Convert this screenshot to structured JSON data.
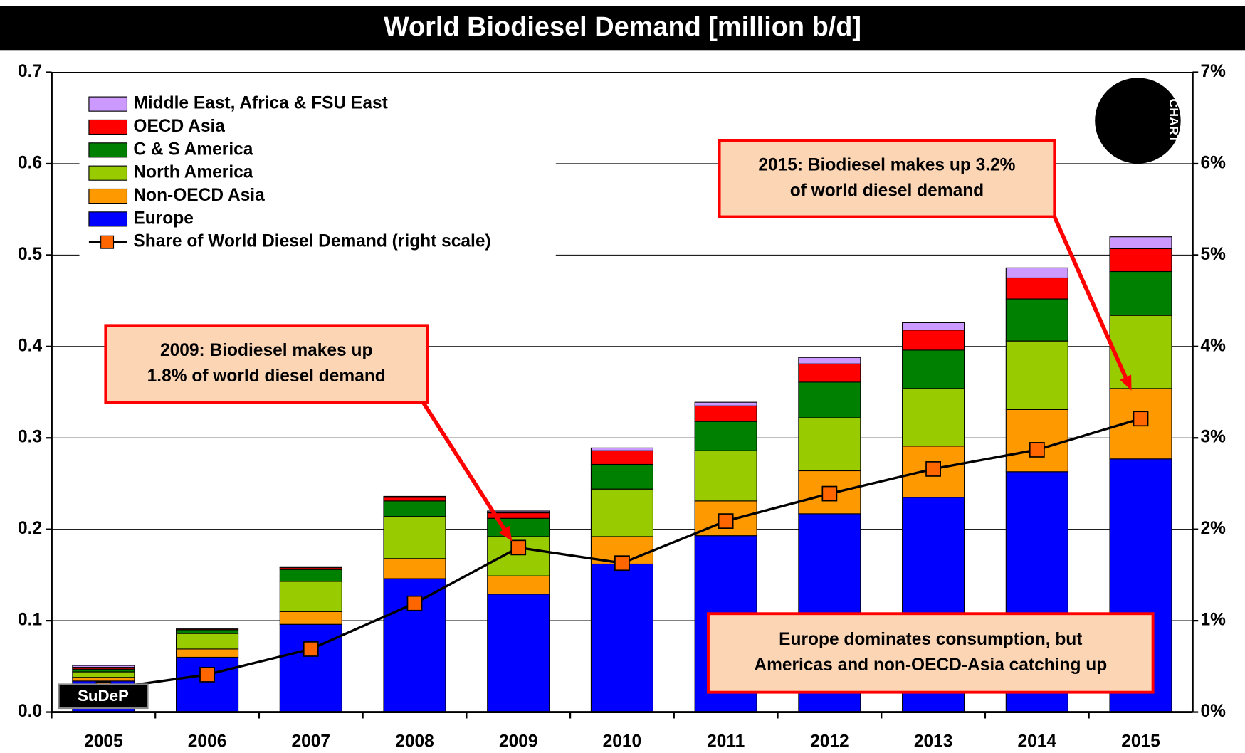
{
  "chart_data": {
    "type": "stacked_bar_line",
    "title": "World Biodiesel Demand [million b/d]",
    "categories": [
      "2005",
      "2006",
      "2007",
      "2008",
      "2009",
      "2010",
      "2011",
      "2012",
      "2013",
      "2014",
      "2015"
    ],
    "ylim": [
      0,
      0.7
    ],
    "yticks": [
      {
        "value": 0,
        "label": "0.0"
      },
      0.1,
      0.2,
      0.3,
      0.4,
      0.5,
      0.6,
      0.7
    ],
    "y2lim": [
      0,
      7
    ],
    "y2ticks": [
      {
        "value": 0,
        "label": "0%"
      },
      {
        "value": 1,
        "label": "1%"
      },
      {
        "value": 2,
        "label": "2%"
      },
      {
        "value": 3,
        "label": "3%"
      },
      {
        "value": 4,
        "label": "4%"
      },
      {
        "value": 5,
        "label": "5%"
      },
      {
        "value": 6,
        "label": "6%"
      },
      {
        "value": 7,
        "label": "7%"
      }
    ],
    "grid": true,
    "legend": "upper left",
    "series": [
      {
        "name": "Europe",
        "color": "#0000ff",
        "values": [
          0.034,
          0.06,
          0.096,
          0.146,
          0.129,
          0.162,
          0.193,
          0.217,
          0.235,
          0.263,
          0.277
        ]
      },
      {
        "name": "Non-OECD Asia",
        "color": "#ff9900",
        "values": [
          0.004,
          0.009,
          0.014,
          0.022,
          0.02,
          0.03,
          0.038,
          0.047,
          0.056,
          0.068,
          0.077
        ]
      },
      {
        "name": "North America",
        "color": "#99cc00",
        "values": [
          0.006,
          0.017,
          0.033,
          0.046,
          0.043,
          0.052,
          0.055,
          0.058,
          0.063,
          0.075,
          0.08
        ]
      },
      {
        "name": "C & S America",
        "color": "#008000",
        "values": [
          0.003,
          0.004,
          0.013,
          0.017,
          0.02,
          0.027,
          0.032,
          0.039,
          0.042,
          0.046,
          0.048
        ]
      },
      {
        "name": "OECD Asia",
        "color": "#ff0000",
        "values": [
          0.002,
          0.001,
          0.002,
          0.004,
          0.006,
          0.015,
          0.017,
          0.02,
          0.022,
          0.023,
          0.025
        ]
      },
      {
        "name": "Middle East, Africa & FSU East",
        "color": "#cc99ff",
        "values": [
          0.002,
          0.0,
          0.001,
          0.001,
          0.002,
          0.003,
          0.004,
          0.007,
          0.008,
          0.011,
          0.013
        ]
      },
      {
        "name": "Share of World Diesel Demand (right scale)",
        "color": "#000000",
        "marker_color": "#ff6600",
        "axis": "y2",
        "values": [
          0.25,
          0.41,
          0.69,
          1.19,
          1.8,
          1.63,
          2.09,
          2.39,
          2.66,
          2.87,
          3.21
        ]
      }
    ],
    "annotations": [
      {
        "lines": [
          "2009: Biodiesel makes up",
          "1.8% of world diesel demand"
        ]
      },
      {
        "lines": [
          "2015: Biodiesel makes up 3.2%",
          "of world diesel demand"
        ]
      },
      {
        "lines": [
          "Europe dominates consumption, but",
          "Americas and non-OECD-Asia catching up"
        ]
      }
    ],
    "logos": [
      "SuDeP",
      "CHART"
    ]
  }
}
